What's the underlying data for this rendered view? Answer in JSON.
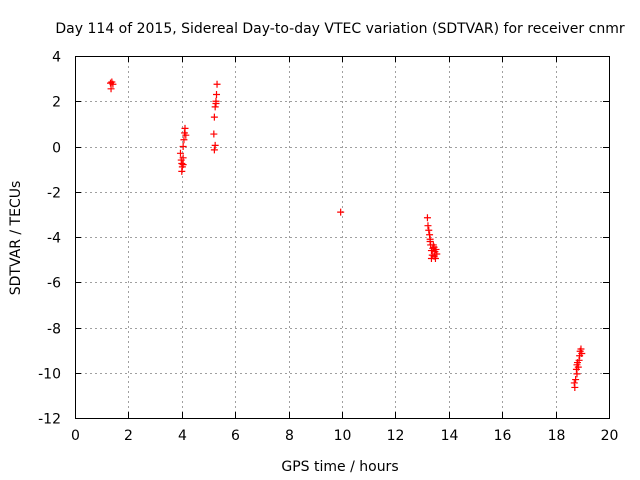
{
  "chart_data": {
    "type": "scatter",
    "title": "Day 114 of 2015, Sidereal Day-to-day VTEC variation (SDTVAR) for receiver cnmr",
    "xlabel": "GPS time / hours",
    "ylabel": "SDTVAR / TECUs",
    "xlim": [
      0,
      20
    ],
    "ylim": [
      -12,
      4
    ],
    "xticks": [
      0,
      2,
      4,
      6,
      8,
      10,
      12,
      14,
      16,
      18,
      20
    ],
    "yticks": [
      -12,
      -10,
      -8,
      -6,
      -4,
      -2,
      0,
      2,
      4
    ],
    "grid": true,
    "marker": "+",
    "color": "#ff0000",
    "series": [
      {
        "name": "SDTVAR",
        "points": [
          [
            1.33,
            2.8
          ],
          [
            1.38,
            2.85
          ],
          [
            1.42,
            2.75
          ],
          [
            1.35,
            2.55
          ],
          [
            3.95,
            -0.3
          ],
          [
            3.98,
            -0.6
          ],
          [
            4.0,
            -0.75
          ],
          [
            4.02,
            -0.9
          ],
          [
            4.0,
            -1.1
          ],
          [
            4.05,
            -0.5
          ],
          [
            4.05,
            0.0
          ],
          [
            4.08,
            0.3
          ],
          [
            4.1,
            0.6
          ],
          [
            4.12,
            0.8
          ],
          [
            4.15,
            0.5
          ],
          [
            4.05,
            -0.8
          ],
          [
            5.2,
            0.55
          ],
          [
            5.22,
            1.3
          ],
          [
            5.25,
            1.75
          ],
          [
            5.28,
            2.0
          ],
          [
            5.3,
            2.3
          ],
          [
            5.32,
            2.75
          ],
          [
            5.22,
            -0.15
          ],
          [
            5.25,
            0.05
          ],
          [
            5.28,
            1.9
          ],
          [
            9.95,
            -2.9
          ],
          [
            13.2,
            -3.15
          ],
          [
            13.22,
            -3.5
          ],
          [
            13.25,
            -3.7
          ],
          [
            13.28,
            -3.9
          ],
          [
            13.3,
            -4.1
          ],
          [
            13.32,
            -4.35
          ],
          [
            13.35,
            -4.6
          ],
          [
            13.38,
            -4.8
          ],
          [
            13.4,
            -4.5
          ],
          [
            13.42,
            -4.35
          ],
          [
            13.45,
            -4.85
          ],
          [
            13.48,
            -4.65
          ],
          [
            13.5,
            -4.95
          ],
          [
            13.52,
            -4.55
          ],
          [
            13.55,
            -4.75
          ],
          [
            13.35,
            -4.95
          ],
          [
            13.3,
            -4.2
          ],
          [
            13.45,
            -4.45
          ],
          [
            18.7,
            -10.45
          ],
          [
            18.72,
            -10.65
          ],
          [
            18.75,
            -10.3
          ],
          [
            18.78,
            -9.85
          ],
          [
            18.8,
            -9.65
          ],
          [
            18.82,
            -9.55
          ],
          [
            18.85,
            -9.75
          ],
          [
            18.88,
            -9.45
          ],
          [
            18.9,
            -9.25
          ],
          [
            18.92,
            -9.05
          ],
          [
            18.95,
            -8.95
          ],
          [
            18.98,
            -9.15
          ],
          [
            18.8,
            -10.05
          ]
        ]
      }
    ]
  }
}
